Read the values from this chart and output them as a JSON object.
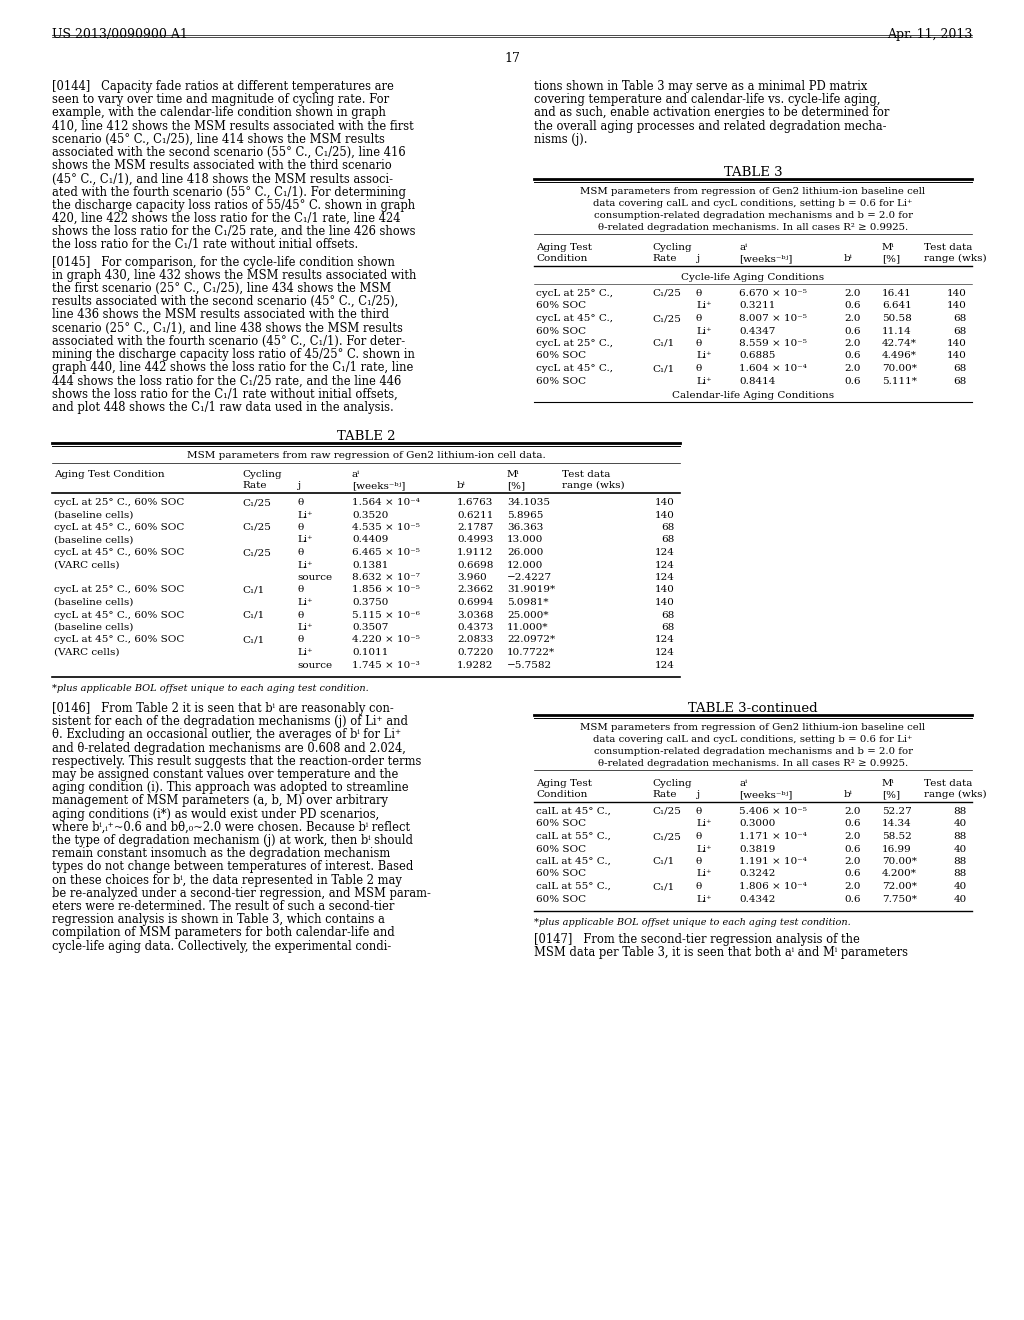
{
  "bg_color": "#ffffff",
  "header_left": "US 2013/0090900 A1",
  "header_right": "Apr. 11, 2013",
  "page_number": "17",
  "table3_section1": "Cycle-life Aging Conditions",
  "table3_section2": "Calendar-life Aging Conditions",
  "table3_data1": [
    [
      "cycL at 25° C.,",
      "C₁/25",
      "θ",
      "6.670 × 10⁻⁵",
      "2.0",
      "16.41",
      "140"
    ],
    [
      "60% SOC",
      "",
      "Li⁺",
      "0.3211",
      "0.6",
      "6.641",
      "140"
    ],
    [
      "cycL at 45° C.,",
      "C₁/25",
      "θ",
      "8.007 × 10⁻⁵",
      "2.0",
      "50.58",
      "68"
    ],
    [
      "60% SOC",
      "",
      "Li⁺",
      "0.4347",
      "0.6",
      "11.14",
      "68"
    ],
    [
      "cycL at 25° C.,",
      "C₁/1",
      "θ",
      "8.559 × 10⁻⁵",
      "2.0",
      "42.74*",
      "140"
    ],
    [
      "60% SOC",
      "",
      "Li⁺",
      "0.6885",
      "0.6",
      "4.496*",
      "140"
    ],
    [
      "cycL at 45° C.,",
      "C₁/1",
      "θ",
      "1.604 × 10⁻⁴",
      "2.0",
      "70.00*",
      "68"
    ],
    [
      "60% SOC",
      "",
      "Li⁺",
      "0.8414",
      "0.6",
      "5.111*",
      "68"
    ]
  ],
  "table2_caption": "MSM parameters from raw regression of Gen2 lithium-ion cell data.",
  "table2_data": [
    [
      "cycL at 25° C., 60% SOC",
      "C₁/25",
      "θ",
      "1.564 × 10⁻⁴",
      "1.6763",
      "34.1035",
      "140"
    ],
    [
      "(baseline cells)",
      "",
      "Li⁺",
      "0.3520",
      "0.6211",
      "5.8965",
      "140"
    ],
    [
      "cycL at 45° C., 60% SOC",
      "C₁/25",
      "θ",
      "4.535 × 10⁻⁵",
      "2.1787",
      "36.363",
      "68"
    ],
    [
      "(baseline cells)",
      "",
      "Li⁺",
      "0.4409",
      "0.4993",
      "13.000",
      "68"
    ],
    [
      "cycL at 45° C., 60% SOC",
      "C₁/25",
      "θ",
      "6.465 × 10⁻⁵",
      "1.9112",
      "26.000",
      "124"
    ],
    [
      "(VARC cells)",
      "",
      "Li⁺",
      "0.1381",
      "0.6698",
      "12.000",
      "124"
    ],
    [
      "",
      "",
      "source",
      "8.632 × 10⁻⁷",
      "3.960",
      "−2.4227",
      "124"
    ],
    [
      "cycL at 25° C., 60% SOC",
      "C₁/1",
      "θ",
      "1.856 × 10⁻⁵",
      "2.3662",
      "31.9019*",
      "140"
    ],
    [
      "(baseline cells)",
      "",
      "Li⁺",
      "0.3750",
      "0.6994",
      "5.0981*",
      "140"
    ],
    [
      "cycL at 45° C., 60% SOC",
      "C₁/1",
      "θ",
      "5.115 × 10⁻⁶",
      "3.0368",
      "25.000*",
      "68"
    ],
    [
      "(baseline cells)",
      "",
      "Li⁺",
      "0.3507",
      "0.4373",
      "11.000*",
      "68"
    ],
    [
      "cycL at 45° C., 60% SOC",
      "C₁/1",
      "θ",
      "4.220 × 10⁻⁵",
      "2.0833",
      "22.0972*",
      "124"
    ],
    [
      "(VARC cells)",
      "",
      "Li⁺",
      "0.1011",
      "0.7220",
      "10.7722*",
      "124"
    ],
    [
      "",
      "",
      "source",
      "1.745 × 10⁻³",
      "1.9282",
      "−5.7582",
      "124"
    ]
  ],
  "table2_footnote": "*plus applicable BOL offset unique to each aging test condition.",
  "table3cont_data": [
    [
      "calL at 45° C.,",
      "C₁/25",
      "θ",
      "5.406 × 10⁻⁵",
      "2.0",
      "52.27",
      "88"
    ],
    [
      "60% SOC",
      "",
      "Li⁺",
      "0.3000",
      "0.6",
      "14.34",
      "40"
    ],
    [
      "calL at 55° C.,",
      "C₁/25",
      "θ",
      "1.171 × 10⁻⁴",
      "2.0",
      "58.52",
      "88"
    ],
    [
      "60% SOC",
      "",
      "Li⁺",
      "0.3819",
      "0.6",
      "16.99",
      "40"
    ],
    [
      "calL at 45° C.,",
      "C₁/1",
      "θ",
      "1.191 × 10⁻⁴",
      "2.0",
      "70.00*",
      "88"
    ],
    [
      "60% SOC",
      "",
      "Li⁺",
      "0.3242",
      "0.6",
      "4.200*",
      "88"
    ],
    [
      "calL at 55° C.,",
      "C₁/1",
      "θ",
      "1.806 × 10⁻⁴",
      "2.0",
      "72.00*",
      "40"
    ],
    [
      "60% SOC",
      "",
      "Li⁺",
      "0.4342",
      "0.6",
      "7.750*",
      "40"
    ]
  ],
  "table3cont_footnote": "*plus applicable BOL offset unique to each aging test condition."
}
